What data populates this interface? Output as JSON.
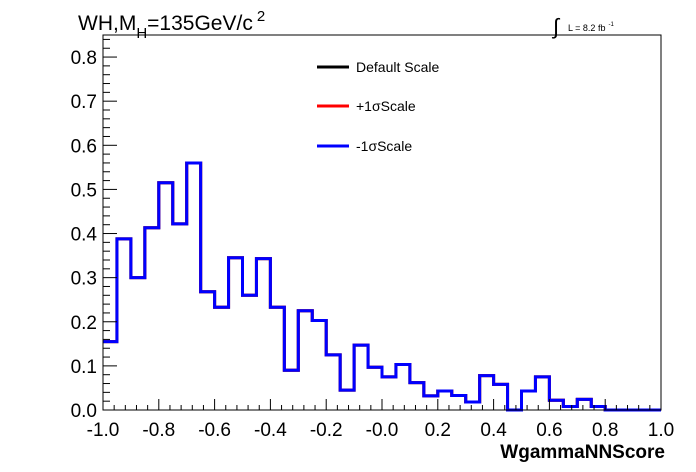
{
  "chart_data": {
    "type": "histogram",
    "title_parts": {
      "base": "WH,M",
      "subscript": "H",
      "equals_value": "=135GeV/c",
      "superscript": "2"
    },
    "lumi_parts": {
      "integral_symbol": "∫",
      "text": "L = 8.2 fb",
      "superscript": "-1"
    },
    "xlabel": "WgammaNNScore",
    "ylabel": "",
    "xlim": [
      -1.0,
      1.0
    ],
    "ylim": [
      0.0,
      0.85
    ],
    "x_tick_labels": [
      "-1.0",
      "-0.8",
      "-0.6",
      "-0.4",
      "-0.2",
      "-0.0",
      "0.2",
      "0.4",
      "0.6",
      "0.8",
      "1.0"
    ],
    "x_tick_values": [
      -1.0,
      -0.8,
      -0.6,
      -0.4,
      -0.2,
      0.0,
      0.2,
      0.4,
      0.6,
      0.8,
      1.0
    ],
    "y_tick_labels": [
      "0.0",
      "0.1",
      "0.2",
      "0.3",
      "0.4",
      "0.5",
      "0.6",
      "0.7",
      "0.8"
    ],
    "y_tick_values": [
      0.0,
      0.1,
      0.2,
      0.3,
      0.4,
      0.5,
      0.6,
      0.7,
      0.8
    ],
    "grid": false,
    "legend_position": "top-center",
    "bin_edges_start": -1.0,
    "bin_width": 0.05,
    "series": [
      {
        "name": "Default Scale",
        "color": "#000000",
        "values": [
          0.155,
          0.388,
          0.3,
          0.413,
          0.515,
          0.422,
          0.56,
          0.268,
          0.233,
          0.345,
          0.26,
          0.343,
          0.233,
          0.09,
          0.225,
          0.203,
          0.125,
          0.045,
          0.147,
          0.097,
          0.075,
          0.103,
          0.062,
          0.032,
          0.043,
          0.033,
          0.018,
          0.078,
          0.058,
          0.0,
          0.043,
          0.075,
          0.022,
          0.008,
          0.024,
          0.008,
          0.0,
          0.0,
          0.0,
          0.0
        ]
      },
      {
        "name": "+1σScale",
        "color": "#ff0000",
        "values": [
          0.155,
          0.388,
          0.3,
          0.413,
          0.515,
          0.422,
          0.56,
          0.268,
          0.233,
          0.345,
          0.26,
          0.343,
          0.233,
          0.09,
          0.225,
          0.203,
          0.125,
          0.045,
          0.147,
          0.097,
          0.075,
          0.103,
          0.062,
          0.032,
          0.043,
          0.033,
          0.018,
          0.078,
          0.058,
          0.0,
          0.043,
          0.075,
          0.022,
          0.008,
          0.024,
          0.008,
          0.0,
          0.0,
          0.0,
          0.0
        ]
      },
      {
        "name": "-1σScale",
        "color": "#0000ff",
        "values": [
          0.155,
          0.388,
          0.3,
          0.413,
          0.515,
          0.422,
          0.56,
          0.268,
          0.233,
          0.345,
          0.26,
          0.343,
          0.233,
          0.09,
          0.225,
          0.203,
          0.125,
          0.045,
          0.147,
          0.097,
          0.075,
          0.103,
          0.062,
          0.032,
          0.043,
          0.033,
          0.018,
          0.078,
          0.058,
          0.0,
          0.043,
          0.075,
          0.022,
          0.008,
          0.024,
          0.008,
          0.0,
          0.0,
          0.0,
          0.0
        ]
      }
    ]
  }
}
